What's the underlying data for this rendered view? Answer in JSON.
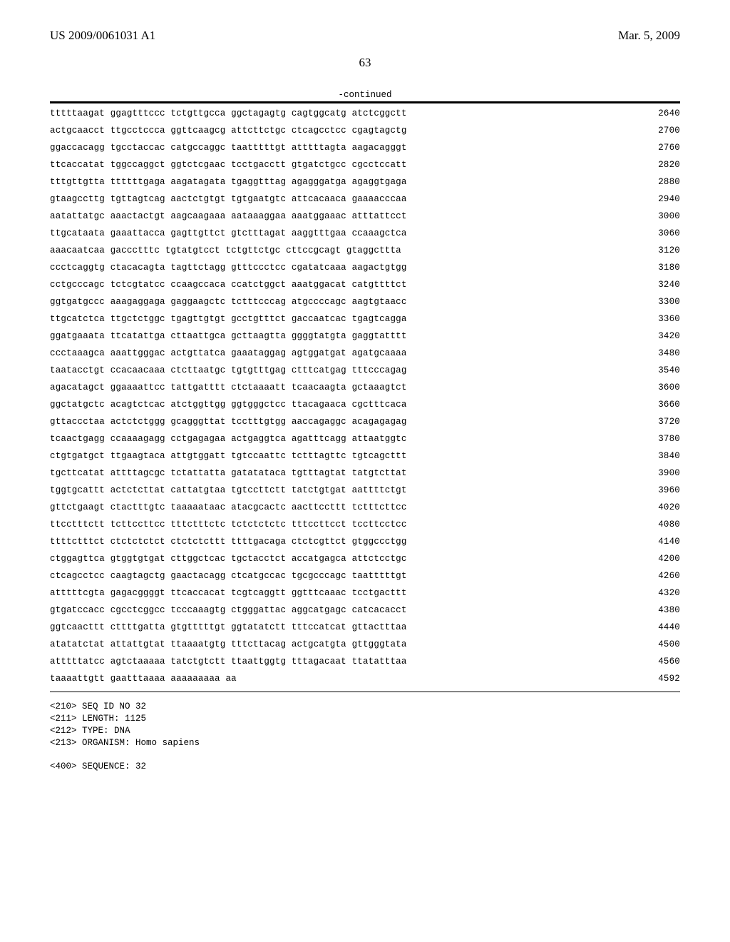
{
  "header": {
    "left": "US 2009/0061031 A1",
    "right": "Mar. 5, 2009"
  },
  "page_number": "63",
  "continued_label": "-continued",
  "sequence_rows": [
    {
      "text": "tttttaagat ggagtttccc tctgttgcca ggctagagtg cagtggcatg atctcggctt",
      "num": "2640"
    },
    {
      "text": "actgcaacct ttgcctccca ggttcaagcg attcttctgc ctcagcctcc cgagtagctg",
      "num": "2700"
    },
    {
      "text": "ggaccacagg tgcctaccac catgccaggc taatttttgt atttttagta aagacagggt",
      "num": "2760"
    },
    {
      "text": "ttcaccatat tggccaggct ggtctcgaac tcctgacctt gtgatctgcc cgcctccatt",
      "num": "2820"
    },
    {
      "text": "tttgttgtta ttttttgaga aagatagata tgaggtttag agagggatga agaggtgaga",
      "num": "2880"
    },
    {
      "text": "gtaagccttg tgttagtcag aactctgtgt tgtgaatgtc attcacaaca gaaaacccaa",
      "num": "2940"
    },
    {
      "text": "aatattatgc aaactactgt aagcaagaaa aataaaggaa aaatggaaac atttattcct",
      "num": "3000"
    },
    {
      "text": "ttgcataata gaaattacca gagttgttct gtctttagat aaggtttgaa ccaaagctca",
      "num": "3060"
    },
    {
      "text": "aaacaatcaa gaccctttc tgtatgtcct tctgttctgc cttccgcagt gtaggcttta",
      "num": "3120"
    },
    {
      "text": "ccctcaggtg ctacacagta tagttctagg gtttccctcc cgatatcaaa aagactgtgg",
      "num": "3180"
    },
    {
      "text": "cctgcccagc tctcgtatcc ccaagccaca ccatctggct aaatggacat catgttttct",
      "num": "3240"
    },
    {
      "text": "ggtgatgccc aaagaggaga gaggaagctc tctttcccag atgccccagc aagtgtaacc",
      "num": "3300"
    },
    {
      "text": "ttgcatctca ttgctctggc tgagttgtgt gcctgtttct gaccaatcac tgagtcagga",
      "num": "3360"
    },
    {
      "text": "ggatgaaata ttcatattga cttaattgca gcttaagtta ggggtatgta gaggtatttt",
      "num": "3420"
    },
    {
      "text": "ccctaaagca aaattgggac actgttatca gaaataggag agtggatgat agatgcaaaa",
      "num": "3480"
    },
    {
      "text": "taatacctgt ccacaacaaa ctcttaatgc tgtgtttgag ctttcatgag tttcccagag",
      "num": "3540"
    },
    {
      "text": "agacatagct ggaaaattcc tattgatttt ctctaaaatt tcaacaagta gctaaagtct",
      "num": "3600"
    },
    {
      "text": "ggctatgctc acagtctcac atctggttgg ggtgggctcc ttacagaaca cgctttcaca",
      "num": "3660"
    },
    {
      "text": "gttaccctaa actctctggg gcagggttat tcctttgtgg aaccagaggc acagagagag",
      "num": "3720"
    },
    {
      "text": "tcaactgagg ccaaaagagg cctgagagaa actgaggtca agatttcagg attaatggtc",
      "num": "3780"
    },
    {
      "text": "ctgtgatgct ttgaagtaca attgtggatt tgtccaattc tctttagttc tgtcagcttt",
      "num": "3840"
    },
    {
      "text": "tgcttcatat attttagcgc tctattatta gatatataca tgtttagtat tatgtcttat",
      "num": "3900"
    },
    {
      "text": "tggtgcattt actctcttat cattatgtaa tgtccttctt tatctgtgat aattttctgt",
      "num": "3960"
    },
    {
      "text": "gttctgaagt ctactttgtc taaaaataac atacgcactc aacttccttt tctttcttcc",
      "num": "4020"
    },
    {
      "text": "ttcctttctt tcttccttcc tttctttctc tctctctctc tttccttcct tccttcctcc",
      "num": "4080"
    },
    {
      "text": "ttttctttct ctctctctct ctctctcttt ttttgacaga ctctcgttct gtggccctgg",
      "num": "4140"
    },
    {
      "text": "ctggagttca gtggtgtgat cttggctcac tgctacctct accatgagca attctcctgc",
      "num": "4200"
    },
    {
      "text": "ctcagcctcc caagtagctg gaactacagg ctcatgccac tgcgcccagc taatttttgt",
      "num": "4260"
    },
    {
      "text": "atttttcgta gagacggggt ttcaccacat tcgtcaggtt ggtttcaaac tcctgacttt",
      "num": "4320"
    },
    {
      "text": "gtgatccacc cgcctcggcc tcccaaagtg ctgggattac aggcatgagc catcacacct",
      "num": "4380"
    },
    {
      "text": "ggtcaacttt cttttgatta gtgtttttgt ggtatatctt tttccatcat gttactttaa",
      "num": "4440"
    },
    {
      "text": "atatatctat attattgtat ttaaaatgtg tttcttacag actgcatgta gttgggtata",
      "num": "4500"
    },
    {
      "text": "atttttatcc agtctaaaaa tatctgtctt ttaattggtg tttagacaat ttatatttaa",
      "num": "4560"
    },
    {
      "text": "taaaattgtt gaatttaaaa aaaaaaaaa aa",
      "num": "4592"
    }
  ],
  "meta_lines": [
    "<210> SEQ ID NO 32",
    "<211> LENGTH: 1125",
    "<212> TYPE: DNA",
    "<213> ORGANISM: Homo sapiens",
    "",
    "<400> SEQUENCE: 32"
  ]
}
